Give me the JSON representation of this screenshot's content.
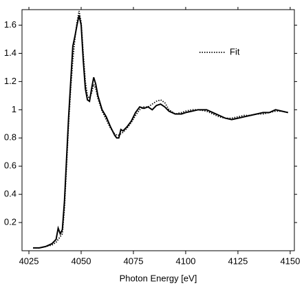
{
  "chart_data": {
    "type": "line",
    "x_label": "Photon Energy [eV]",
    "x": [
      4027,
      4030,
      4033,
      4036,
      4038,
      4039,
      4040,
      4041,
      4042,
      4043,
      4044,
      4045,
      4046,
      4047,
      4048,
      4049,
      4050,
      4051,
      4052,
      4053,
      4054,
      4055,
      4056,
      4057,
      4058,
      4060,
      4062,
      4064,
      4066,
      4067,
      4068,
      4069,
      4070,
      4072,
      4074,
      4076,
      4078,
      4080,
      4082,
      4084,
      4086,
      4088,
      4090,
      4092,
      4095,
      4098,
      4100,
      4103,
      4106,
      4110,
      4113,
      4116,
      4119,
      4122,
      4125,
      4128,
      4131,
      4134,
      4137,
      4140,
      4143,
      4146,
      4149
    ],
    "series": [
      {
        "color": "#000000",
        "dash": "solid",
        "values": [
          0.02,
          0.02,
          0.03,
          0.05,
          0.08,
          0.16,
          0.12,
          0.15,
          0.35,
          0.65,
          0.95,
          1.2,
          1.45,
          1.52,
          1.6,
          1.67,
          1.6,
          1.35,
          1.15,
          1.07,
          1.06,
          1.15,
          1.23,
          1.18,
          1.1,
          1.0,
          0.95,
          0.88,
          0.82,
          0.8,
          0.8,
          0.86,
          0.85,
          0.88,
          0.92,
          0.98,
          1.02,
          1.01,
          1.02,
          1.0,
          1.03,
          1.04,
          1.02,
          0.99,
          0.97,
          0.97,
          0.98,
          0.99,
          1.0,
          1.0,
          0.98,
          0.96,
          0.94,
          0.93,
          0.94,
          0.95,
          0.96,
          0.97,
          0.98,
          0.98,
          1.0,
          0.99,
          0.98
        ]
      },
      {
        "name": "Fit",
        "color": "#000000",
        "dash": "dotted",
        "values": [
          0.02,
          0.02,
          0.03,
          0.04,
          0.06,
          0.08,
          0.1,
          0.12,
          0.3,
          0.6,
          0.9,
          1.15,
          1.35,
          1.5,
          1.62,
          1.7,
          1.62,
          1.4,
          1.2,
          1.1,
          1.08,
          1.12,
          1.18,
          1.15,
          1.08,
          0.99,
          0.93,
          0.87,
          0.83,
          0.82,
          0.82,
          0.83,
          0.84,
          0.87,
          0.91,
          0.96,
          1.0,
          1.02,
          1.02,
          1.04,
          1.06,
          1.07,
          1.05,
          1.0,
          0.97,
          0.98,
          0.99,
          1.0,
          1.0,
          0.99,
          0.97,
          0.95,
          0.94,
          0.94,
          0.95,
          0.96,
          0.96,
          0.97,
          0.97,
          0.98,
          0.99,
          0.99,
          0.98
        ]
      }
    ],
    "xlim": [
      4021.7,
      4152
    ],
    "ylim": [
      0,
      1.71
    ],
    "xticks": [
      4025,
      4050,
      4075,
      4100,
      4125,
      4150
    ],
    "yticks": [
      0.2,
      0.4,
      0.6,
      0.8,
      1.0,
      1.2,
      1.4,
      1.6
    ],
    "legend": "upper right"
  }
}
